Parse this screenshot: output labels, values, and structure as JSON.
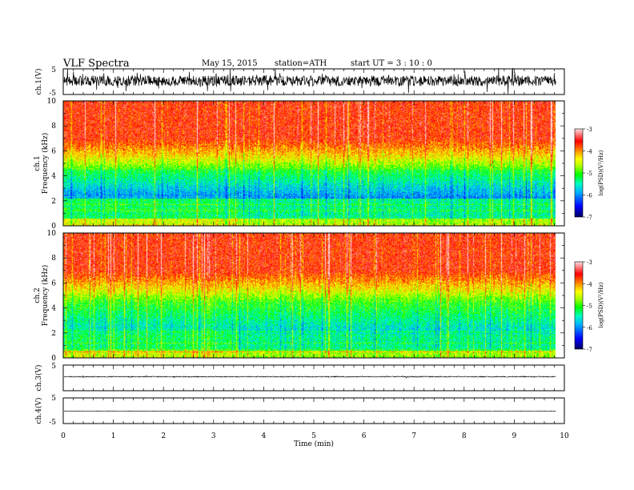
{
  "header": {
    "title": "VLF  Spectra",
    "date": "May 15, 2015",
    "station": "station=ATH",
    "start": "start  UT  =   3  : 10 : 0"
  },
  "chart_data": [
    {
      "type": "line",
      "panel": "ch1-waveform",
      "ylabel": "ch.1(V)",
      "ylim": [
        -5,
        5
      ],
      "yticks": [
        "5",
        "-5"
      ],
      "xlim": [
        0,
        10
      ],
      "description_visible": "dense noisy waveform, roughly -2 to 2 V with spikes to about +/-4 V"
    },
    {
      "type": "heatmap",
      "panel": "ch1-spectrogram",
      "ylabel_line1": "ch.1",
      "ylabel_line2": "Frequency  (kHz)",
      "ylim": [
        0,
        10
      ],
      "yticks": [
        "0",
        "2",
        "4",
        "6",
        "8",
        "10"
      ],
      "xlim": [
        0,
        10
      ],
      "colorbar": {
        "label": "log(PSD)(V²/Hz)",
        "range": [
          -7,
          -3
        ],
        "ticks": [
          "-3",
          "-4",
          "-5",
          "-6",
          "-7"
        ]
      }
    },
    {
      "type": "heatmap",
      "panel": "ch2-spectrogram",
      "ylabel_line1": "ch.2",
      "ylabel_line2": "Frequency  (kHz)",
      "ylim": [
        0,
        10
      ],
      "yticks": [
        "0",
        "2",
        "4",
        "6",
        "8",
        "10"
      ],
      "xlim": [
        0,
        10
      ],
      "colorbar": {
        "label": "log(PSD)(V²/Hz)",
        "range": [
          -7,
          -3
        ],
        "ticks": [
          "-3",
          "-4",
          "-5",
          "-6",
          "-7"
        ]
      }
    },
    {
      "type": "line",
      "panel": "ch3-waveform",
      "ylabel": "ch.3(V)",
      "ylim": [
        -5,
        5
      ],
      "yticks": [
        "5"
      ],
      "xlim": [
        0,
        10
      ]
    },
    {
      "type": "line",
      "panel": "ch4-waveform",
      "ylabel": "ch.4(V)",
      "ylim": [
        -5,
        5
      ],
      "yticks": [
        "5",
        "-5"
      ],
      "xlim": [
        0,
        10
      ],
      "xlabel": "Time  (min)",
      "xticks": [
        "0",
        "1",
        "2",
        "3",
        "4",
        "5",
        "6",
        "7",
        "8",
        "9",
        "10"
      ]
    }
  ],
  "colors": {
    "axis": "#000000",
    "colormap": [
      "#000080",
      "#0000ff",
      "#00a0ff",
      "#00ffff",
      "#00ff80",
      "#00ff00",
      "#80ff00",
      "#ffff00",
      "#ffa000",
      "#ff4000",
      "#ff0000",
      "#ffffff"
    ]
  }
}
